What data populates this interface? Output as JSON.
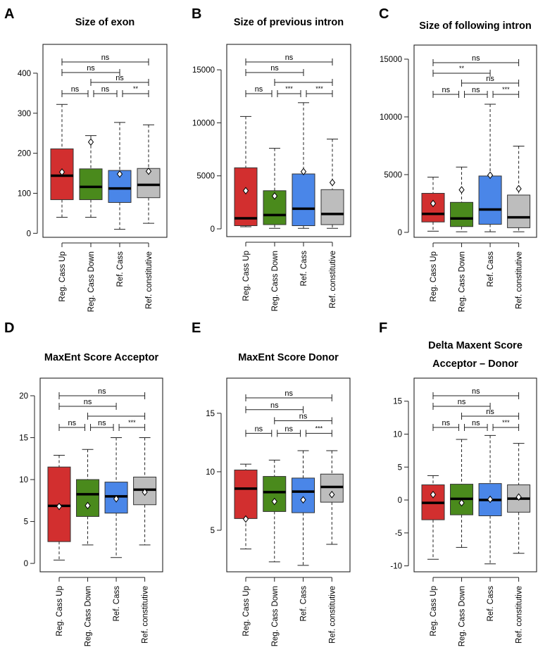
{
  "colors": {
    "Reg. Cass Up": "#d22f2f",
    "Reg. Cass Down": "#4a8a1c",
    "Ref. Cass": "#4a86e8",
    "Ref. constitutive": "#bdbdbd"
  },
  "chart_data": [
    {
      "type": "box",
      "panel": "A",
      "title": [
        "Size of exon"
      ],
      "categories": [
        "Reg. Cass Up",
        "Reg. Cass Down",
        "Ref. Cass",
        "Ref. constitutive"
      ],
      "ylim": [
        -10,
        472
      ],
      "yticks": [
        0,
        100,
        200,
        300,
        400
      ],
      "yticklabels": [
        "0",
        "100",
        "200",
        "300",
        "400"
      ],
      "boxes": [
        {
          "min": 40,
          "q1": 84,
          "median": 144,
          "q3": 211,
          "max": 322,
          "mean": 153
        },
        {
          "min": 40,
          "q1": 84,
          "median": 116,
          "q3": 161,
          "max": 244,
          "mean": 228
        },
        {
          "min": 10,
          "q1": 77,
          "median": 112,
          "q3": 157,
          "max": 277,
          "mean": 148
        },
        {
          "min": 25,
          "q1": 89,
          "median": 121,
          "q3": 162,
          "max": 271,
          "mean": 155
        }
      ],
      "comparisons": [
        {
          "from": 1,
          "to": 4,
          "label": "ns"
        },
        {
          "from": 1,
          "to": 3,
          "label": "ns"
        },
        {
          "from": 2,
          "to": 4,
          "label": "ns"
        },
        {
          "from": 1,
          "to": 2,
          "label": "ns"
        },
        {
          "from": 2,
          "to": 3,
          "label": "ns"
        },
        {
          "from": 3,
          "to": 4,
          "label": "**"
        }
      ]
    },
    {
      "type": "box",
      "panel": "B",
      "title": [
        "Size of previous intron"
      ],
      "categories": [
        "Reg. Cass Up",
        "Reg. Cass Down",
        "Ref. Cass",
        "Ref. constitutive"
      ],
      "ylim": [
        -730,
        17400
      ],
      "yticks": [
        0,
        5000,
        10000,
        15000
      ],
      "yticklabels": [
        "0",
        "5000",
        "10000",
        "15000"
      ],
      "boxes": [
        {
          "min": 200,
          "q1": 300,
          "median": 1000,
          "q3": 5760,
          "max": 10600,
          "mean": 3600
        },
        {
          "min": 50,
          "q1": 400,
          "median": 1300,
          "q3": 3600,
          "max": 7600,
          "mean": 3100
        },
        {
          "min": 50,
          "q1": 300,
          "median": 1900,
          "q3": 5180,
          "max": 11900,
          "mean": 5400
        },
        {
          "min": 50,
          "q1": 400,
          "median": 1400,
          "q3": 3700,
          "max": 8470,
          "mean": 4370
        }
      ],
      "comparisons": [
        {
          "from": 1,
          "to": 4,
          "label": "ns"
        },
        {
          "from": 1,
          "to": 3,
          "label": "ns"
        },
        {
          "from": 2,
          "to": 4,
          "label": ""
        },
        {
          "from": 1,
          "to": 2,
          "label": "ns"
        },
        {
          "from": 2,
          "to": 3,
          "label": "***"
        },
        {
          "from": 3,
          "to": 4,
          "label": "***"
        }
      ]
    },
    {
      "type": "box",
      "panel": "C",
      "title": [
        "Size of following intron"
      ],
      "categories": [
        "Reg. Cass Up",
        "Reg. Cass Down",
        "Ref. Cass",
        "Ref. constitutive"
      ],
      "ylim": [
        -430,
        16220
      ],
      "yticks": [
        0,
        5000,
        10000,
        15000
      ],
      "yticklabels": [
        "0",
        "5000",
        "10000",
        "15000"
      ],
      "boxes": [
        {
          "min": 100,
          "q1": 900,
          "median": 1600,
          "q3": 3380,
          "max": 4780,
          "mean": 2500
        },
        {
          "min": 50,
          "q1": 500,
          "median": 1200,
          "q3": 2600,
          "max": 5650,
          "mean": 3680
        },
        {
          "min": 50,
          "q1": 700,
          "median": 1980,
          "q3": 4880,
          "max": 11100,
          "mean": 4950
        },
        {
          "min": 50,
          "q1": 400,
          "median": 1300,
          "q3": 3230,
          "max": 7470,
          "mean": 3780
        }
      ],
      "comparisons": [
        {
          "from": 1,
          "to": 4,
          "label": "ns"
        },
        {
          "from": 1,
          "to": 3,
          "label": "**"
        },
        {
          "from": 2,
          "to": 4,
          "label": "ns"
        },
        {
          "from": 1,
          "to": 2,
          "label": "ns"
        },
        {
          "from": 2,
          "to": 3,
          "label": "ns"
        },
        {
          "from": 3,
          "to": 4,
          "label": "***"
        }
      ]
    },
    {
      "type": "box",
      "panel": "D",
      "title": [
        "MaxEnt Score Acceptor"
      ],
      "categories": [
        "Reg. Cass Up",
        "Reg. Cass Down",
        "Ref. Cass",
        "Ref. constitutive"
      ],
      "ylim": [
        -1.0,
        22.1
      ],
      "yticks": [
        0,
        5,
        10,
        15,
        20
      ],
      "yticklabels": [
        "0",
        "5",
        "10",
        "15",
        "20"
      ],
      "boxes": [
        {
          "min": 0.4,
          "q1": 2.6,
          "median": 6.86,
          "q3": 11.5,
          "max": 12.9,
          "mean": 6.8
        },
        {
          "min": 2.2,
          "q1": 5.6,
          "median": 8.25,
          "q3": 10.0,
          "max": 13.6,
          "mean": 6.9
        },
        {
          "min": 0.7,
          "q1": 6.0,
          "median": 8.0,
          "q3": 9.7,
          "max": 15.0,
          "mean": 7.7
        },
        {
          "min": 2.2,
          "q1": 7.0,
          "median": 8.8,
          "q3": 10.3,
          "max": 15.0,
          "mean": 8.5
        }
      ],
      "comparisons": [
        {
          "from": 1,
          "to": 4,
          "label": "ns"
        },
        {
          "from": 1,
          "to": 3,
          "label": "ns"
        },
        {
          "from": 2,
          "to": 4,
          "label": ""
        },
        {
          "from": 1,
          "to": 2,
          "label": "ns"
        },
        {
          "from": 2,
          "to": 3,
          "label": "ns"
        },
        {
          "from": 3,
          "to": 4,
          "label": "***"
        }
      ]
    },
    {
      "type": "box",
      "panel": "E",
      "title": [
        "MaxEnt Score Donor"
      ],
      "categories": [
        "Reg. Cass Up",
        "Reg. Cass Down",
        "Ref. Cass",
        "Ref. constitutive"
      ],
      "ylim": [
        1.45,
        18.0
      ],
      "yticks": [
        5,
        10,
        15
      ],
      "yticklabels": [
        "5",
        "10",
        "15"
      ],
      "boxes": [
        {
          "min": 3.4,
          "q1": 6.0,
          "median": 8.56,
          "q3": 10.15,
          "max": 10.65,
          "mean": 5.96
        },
        {
          "min": 2.3,
          "q1": 6.6,
          "median": 8.26,
          "q3": 9.6,
          "max": 11.0,
          "mean": 7.46
        },
        {
          "min": 2.0,
          "q1": 6.5,
          "median": 8.3,
          "q3": 9.46,
          "max": 11.8,
          "mean": 7.6
        },
        {
          "min": 3.8,
          "q1": 7.4,
          "median": 8.7,
          "q3": 9.8,
          "max": 11.8,
          "mean": 8.05
        }
      ],
      "comparisons": [
        {
          "from": 1,
          "to": 4,
          "label": "ns"
        },
        {
          "from": 1,
          "to": 3,
          "label": "ns"
        },
        {
          "from": 2,
          "to": 4,
          "label": "ns"
        },
        {
          "from": 1,
          "to": 2,
          "label": "ns"
        },
        {
          "from": 2,
          "to": 3,
          "label": "ns"
        },
        {
          "from": 3,
          "to": 4,
          "label": "***"
        }
      ]
    },
    {
      "type": "box",
      "panel": "F",
      "title": [
        "Delta Maxent Score",
        "Acceptor – Donor"
      ],
      "categories": [
        "Reg. Cass Up",
        "Reg. Cass Down",
        "Ref. Cass",
        "Ref. constitutive"
      ],
      "ylim": [
        -10.9,
        18.5
      ],
      "yticks": [
        -10,
        -5,
        0,
        5,
        10,
        15
      ],
      "yticklabels": [
        "-10",
        "-5",
        "0",
        "5",
        "10",
        "15"
      ],
      "boxes": [
        {
          "min": -9.0,
          "q1": -3.0,
          "median": -0.43,
          "q3": 2.3,
          "max": 3.7,
          "mean": 0.82
        },
        {
          "min": -7.2,
          "q1": -2.25,
          "median": 0.18,
          "q3": 2.4,
          "max": 9.2,
          "mean": -0.43
        },
        {
          "min": -9.7,
          "q1": -2.4,
          "median": 0.0,
          "q3": 2.5,
          "max": 9.8,
          "mean": 0.1
        },
        {
          "min": -8.1,
          "q1": -1.85,
          "median": 0.2,
          "q3": 2.3,
          "max": 8.6,
          "mean": 0.45
        }
      ],
      "comparisons": [
        {
          "from": 1,
          "to": 4,
          "label": "ns"
        },
        {
          "from": 1,
          "to": 3,
          "label": "ns"
        },
        {
          "from": 2,
          "to": 4,
          "label": "ns"
        },
        {
          "from": 1,
          "to": 2,
          "label": "ns"
        },
        {
          "from": 2,
          "to": 3,
          "label": "ns"
        },
        {
          "from": 3,
          "to": 4,
          "label": "***"
        }
      ]
    }
  ]
}
